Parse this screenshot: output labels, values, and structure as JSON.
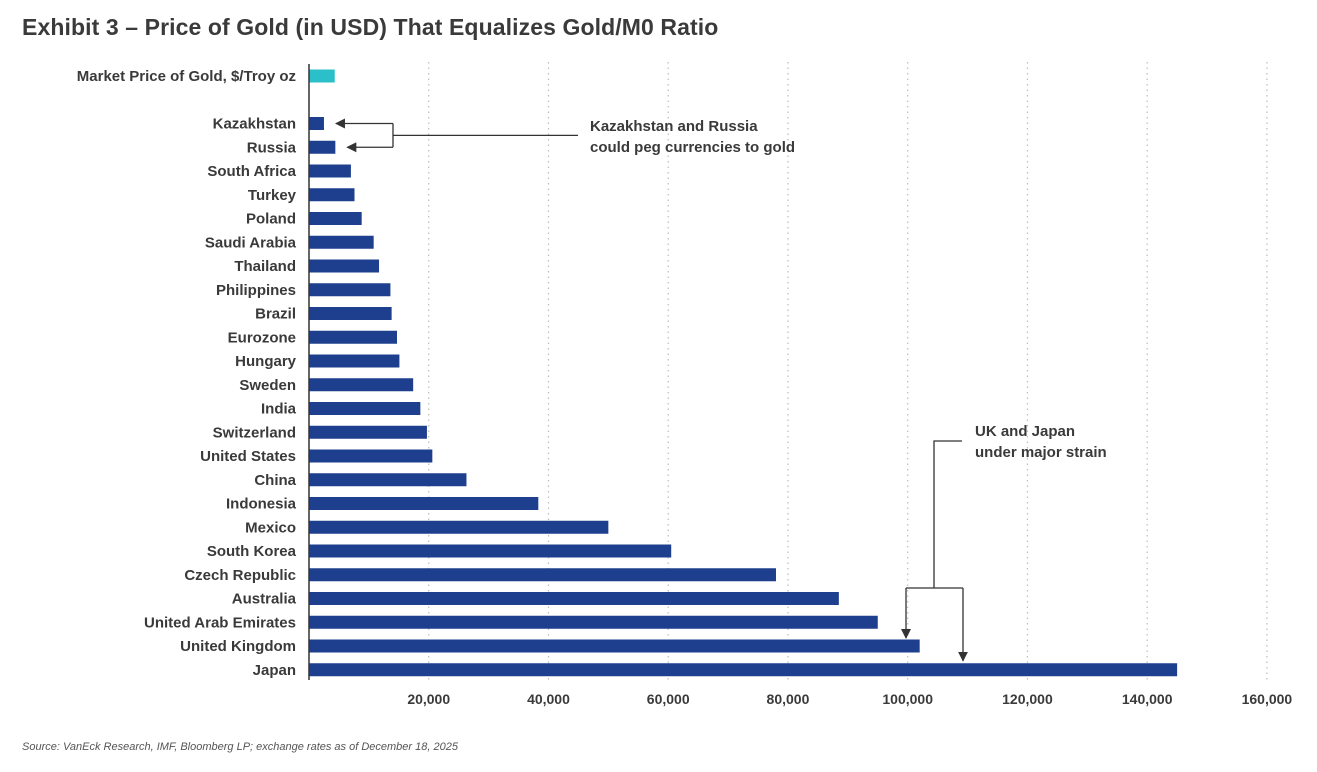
{
  "chart_data": {
    "type": "bar",
    "orientation": "horizontal",
    "title": "Exhibit 3 – Price of Gold (in USD) That Equalizes Gold/M0 Ratio",
    "source": "Source: VanEck Research, IMF, Bloomberg LP; exchange rates as of December 18, 2025",
    "xlim": [
      0,
      160000
    ],
    "xticks": [
      {
        "value": 20000,
        "label": "20,000"
      },
      {
        "value": 40000,
        "label": "40,000"
      },
      {
        "value": 60000,
        "label": "60,000"
      },
      {
        "value": 80000,
        "label": "80,000"
      },
      {
        "value": 100000,
        "label": "100,000"
      },
      {
        "value": 120000,
        "label": "120,000"
      },
      {
        "value": 140000,
        "label": "140,000"
      },
      {
        "value": 160000,
        "label": "160,000"
      }
    ],
    "grid": "vertical dotted",
    "colors": {
      "highlight": "#2bbfc9",
      "bars": "#1e3f8e"
    },
    "reference_bar": {
      "label": "Market Price of Gold, $/Troy oz",
      "value": 4300
    },
    "categories": [
      "Kazakhstan",
      "Russia",
      "South Africa",
      "Turkey",
      "Poland",
      "Saudi Arabia",
      "Thailand",
      "Philippines",
      "Brazil",
      "Eurozone",
      "Hungary",
      "Sweden",
      "India",
      "Switzerland",
      "United States",
      "China",
      "Indonesia",
      "Mexico",
      "South Korea",
      "Czech Republic",
      "Australia",
      "United Arab Emirates",
      "United Kingdom",
      "Japan"
    ],
    "values": [
      2500,
      4400,
      7000,
      7600,
      8800,
      10800,
      11700,
      13600,
      13800,
      14700,
      15100,
      17400,
      18600,
      19700,
      20600,
      26300,
      38300,
      50000,
      60500,
      78000,
      88500,
      95000,
      102000,
      145000
    ],
    "annotations": [
      {
        "text": [
          "Kazakhstan and Russia",
          "could peg currencies to gold"
        ],
        "targets": [
          "Kazakhstan",
          "Russia"
        ]
      },
      {
        "text": [
          "UK and Japan",
          "under major strain"
        ],
        "targets": [
          "United Kingdom",
          "Japan"
        ]
      }
    ]
  }
}
